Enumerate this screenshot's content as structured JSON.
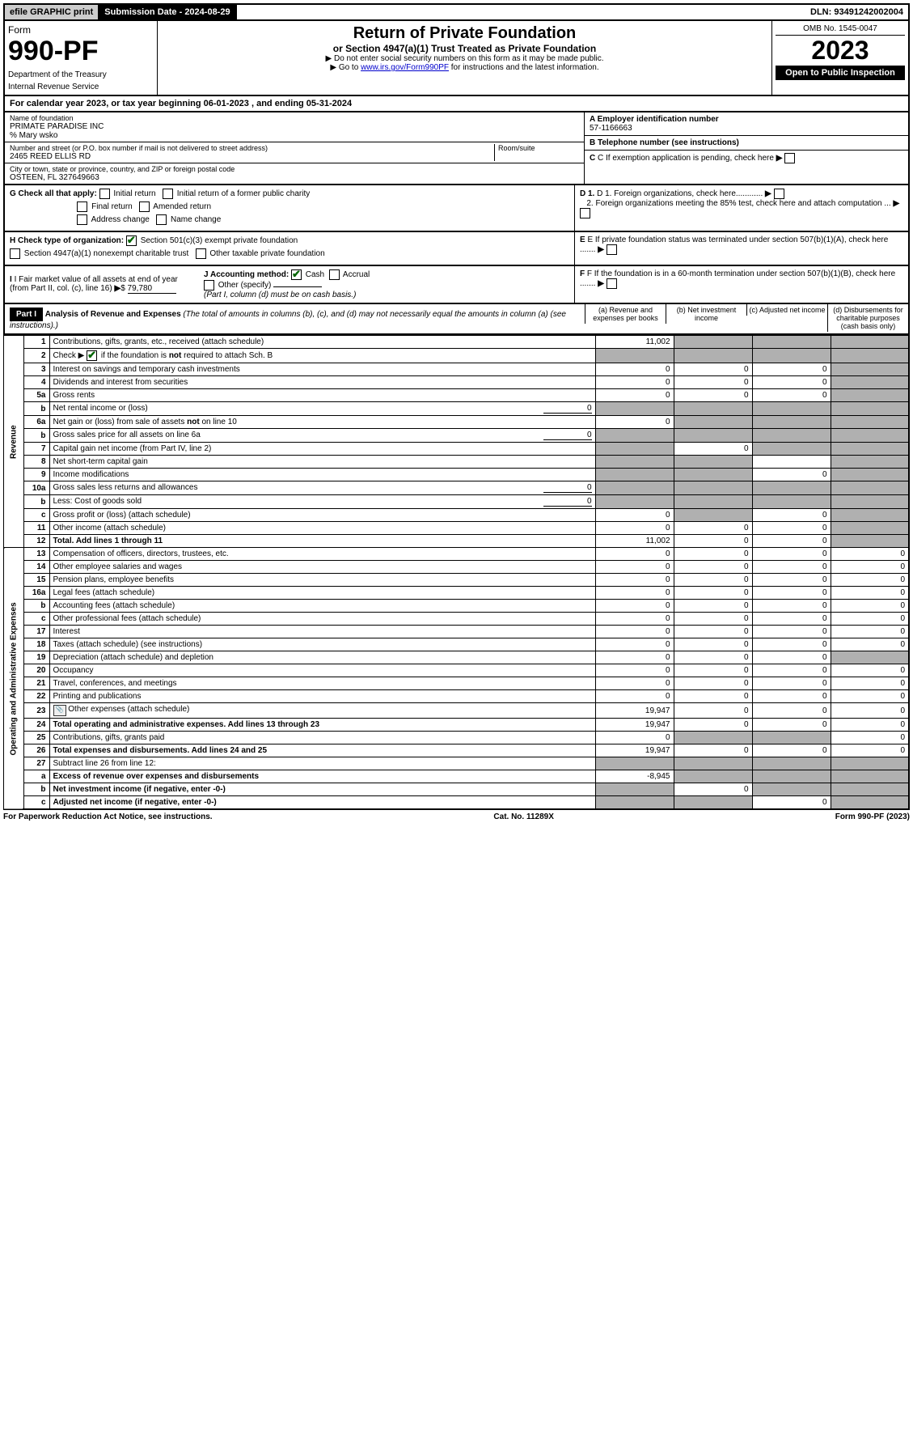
{
  "topbar": {
    "efile": "efile GRAPHIC print",
    "sub_label": "Submission Date - 2024-08-29",
    "dln": "DLN: 93491242002004"
  },
  "header": {
    "form_prefix": "Form",
    "form_num": "990-PF",
    "dept": "Department of the Treasury",
    "irs": "Internal Revenue Service",
    "title": "Return of Private Foundation",
    "subtitle": "or Section 4947(a)(1) Trust Treated as Private Foundation",
    "instr1": "▶ Do not enter social security numbers on this form as it may be made public.",
    "instr2_pre": "▶ Go to ",
    "instr2_link": "www.irs.gov/Form990PF",
    "instr2_post": " for instructions and the latest information.",
    "omb": "OMB No. 1545-0047",
    "year": "2023",
    "open": "Open to Public Inspection"
  },
  "calyear": "For calendar year 2023, or tax year beginning 06-01-2023 , and ending 05-31-2024",
  "id": {
    "name_label": "Name of foundation",
    "name": "PRIMATE PARADISE INC",
    "care_of": "% Mary wsko",
    "addr_label": "Number and street (or P.O. box number if mail is not delivered to street address)",
    "addr": "2465 REED ELLIS RD",
    "room_label": "Room/suite",
    "city_label": "City or town, state or province, country, and ZIP or foreign postal code",
    "city": "OSTEEN, FL 327649663",
    "a_label": "A Employer identification number",
    "a_val": "57-1166663",
    "b_label": "B Telephone number (see instructions)",
    "c_label": "C If exemption application is pending, check here",
    "d1": "D 1. Foreign organizations, check here............",
    "d2": "2. Foreign organizations meeting the 85% test, check here and attach computation ...",
    "e": "E If private foundation status was terminated under section 507(b)(1)(A), check here .......",
    "f": "F If the foundation is in a 60-month termination under section 507(b)(1)(B), check here .......",
    "g": "G Check all that apply:",
    "g_opts": [
      "Initial return",
      "Initial return of a former public charity",
      "Final return",
      "Amended return",
      "Address change",
      "Name change"
    ],
    "h": "H Check type of organization:",
    "h_opts": [
      "Section 501(c)(3) exempt private foundation",
      "Section 4947(a)(1) nonexempt charitable trust",
      "Other taxable private foundation"
    ],
    "i_label": "I Fair market value of all assets at end of year (from Part II, col. (c), line 16)",
    "i_val": "79,780",
    "j_label": "J Accounting method:",
    "j_opts": [
      "Cash",
      "Accrual",
      "Other (specify)"
    ],
    "j_note": "(Part I, column (d) must be on cash basis.)"
  },
  "part1": {
    "label": "Part I",
    "title": "Analysis of Revenue and Expenses",
    "note": "(The total of amounts in columns (b), (c), and (d) may not necessarily equal the amounts in column (a) (see instructions).)",
    "col_a": "(a) Revenue and expenses per books",
    "col_b": "(b) Net investment income",
    "col_c": "(c) Adjusted net income",
    "col_d": "(d) Disbursements for charitable purposes (cash basis only)",
    "side_rev": "Revenue",
    "side_exp": "Operating and Administrative Expenses"
  },
  "rows": [
    {
      "n": "1",
      "desc": "Contributions, gifts, grants, etc., received (attach schedule)",
      "a": "11,002",
      "b": "s",
      "c": "s",
      "d": "s"
    },
    {
      "n": "2",
      "desc": "Check ▶ ☑ if the foundation is not required to attach Sch. B",
      "a": "s",
      "b": "s",
      "c": "s",
      "d": "s"
    },
    {
      "n": "3",
      "desc": "Interest on savings and temporary cash investments",
      "a": "0",
      "b": "0",
      "c": "0",
      "d": "s"
    },
    {
      "n": "4",
      "desc": "Dividends and interest from securities",
      "a": "0",
      "b": "0",
      "c": "0",
      "d": "s"
    },
    {
      "n": "5a",
      "desc": "Gross rents",
      "a": "0",
      "b": "0",
      "c": "0",
      "d": "s"
    },
    {
      "n": "b",
      "desc": "Net rental income or (loss)",
      "inline": "0",
      "a": "s",
      "b": "s",
      "c": "s",
      "d": "s"
    },
    {
      "n": "6a",
      "desc": "Net gain or (loss) from sale of assets not on line 10",
      "a": "0",
      "b": "s",
      "c": "s",
      "d": "s"
    },
    {
      "n": "b",
      "desc": "Gross sales price for all assets on line 6a",
      "inline": "0",
      "a": "s",
      "b": "s",
      "c": "s",
      "d": "s"
    },
    {
      "n": "7",
      "desc": "Capital gain net income (from Part IV, line 2)",
      "a": "s",
      "b": "0",
      "c": "s",
      "d": "s"
    },
    {
      "n": "8",
      "desc": "Net short-term capital gain",
      "a": "s",
      "b": "s",
      "c": "",
      "d": "s"
    },
    {
      "n": "9",
      "desc": "Income modifications",
      "a": "s",
      "b": "s",
      "c": "0",
      "d": "s"
    },
    {
      "n": "10a",
      "desc": "Gross sales less returns and allowances",
      "inline": "0",
      "a": "s",
      "b": "s",
      "c": "s",
      "d": "s"
    },
    {
      "n": "b",
      "desc": "Less: Cost of goods sold",
      "inline": "0",
      "a": "s",
      "b": "s",
      "c": "s",
      "d": "s"
    },
    {
      "n": "c",
      "desc": "Gross profit or (loss) (attach schedule)",
      "a": "0",
      "b": "s",
      "c": "0",
      "d": "s"
    },
    {
      "n": "11",
      "desc": "Other income (attach schedule)",
      "a": "0",
      "b": "0",
      "c": "0",
      "d": "s"
    },
    {
      "n": "12",
      "desc": "Total. Add lines 1 through 11",
      "bold": true,
      "a": "11,002",
      "b": "0",
      "c": "0",
      "d": "s"
    },
    {
      "n": "13",
      "desc": "Compensation of officers, directors, trustees, etc.",
      "a": "0",
      "b": "0",
      "c": "0",
      "d": "0"
    },
    {
      "n": "14",
      "desc": "Other employee salaries and wages",
      "a": "0",
      "b": "0",
      "c": "0",
      "d": "0"
    },
    {
      "n": "15",
      "desc": "Pension plans, employee benefits",
      "a": "0",
      "b": "0",
      "c": "0",
      "d": "0"
    },
    {
      "n": "16a",
      "desc": "Legal fees (attach schedule)",
      "a": "0",
      "b": "0",
      "c": "0",
      "d": "0"
    },
    {
      "n": "b",
      "desc": "Accounting fees (attach schedule)",
      "a": "0",
      "b": "0",
      "c": "0",
      "d": "0"
    },
    {
      "n": "c",
      "desc": "Other professional fees (attach schedule)",
      "a": "0",
      "b": "0",
      "c": "0",
      "d": "0"
    },
    {
      "n": "17",
      "desc": "Interest",
      "a": "0",
      "b": "0",
      "c": "0",
      "d": "0"
    },
    {
      "n": "18",
      "desc": "Taxes (attach schedule) (see instructions)",
      "a": "0",
      "b": "0",
      "c": "0",
      "d": "0"
    },
    {
      "n": "19",
      "desc": "Depreciation (attach schedule) and depletion",
      "a": "0",
      "b": "0",
      "c": "0",
      "d": "s"
    },
    {
      "n": "20",
      "desc": "Occupancy",
      "a": "0",
      "b": "0",
      "c": "0",
      "d": "0"
    },
    {
      "n": "21",
      "desc": "Travel, conferences, and meetings",
      "a": "0",
      "b": "0",
      "c": "0",
      "d": "0"
    },
    {
      "n": "22",
      "desc": "Printing and publications",
      "a": "0",
      "b": "0",
      "c": "0",
      "d": "0"
    },
    {
      "n": "23",
      "desc": "Other expenses (attach schedule)",
      "icon": true,
      "a": "19,947",
      "b": "0",
      "c": "0",
      "d": "0"
    },
    {
      "n": "24",
      "desc": "Total operating and administrative expenses. Add lines 13 through 23",
      "bold": true,
      "a": "19,947",
      "b": "0",
      "c": "0",
      "d": "0"
    },
    {
      "n": "25",
      "desc": "Contributions, gifts, grants paid",
      "a": "0",
      "b": "s",
      "c": "s",
      "d": "0"
    },
    {
      "n": "26",
      "desc": "Total expenses and disbursements. Add lines 24 and 25",
      "bold": true,
      "a": "19,947",
      "b": "0",
      "c": "0",
      "d": "0"
    },
    {
      "n": "27",
      "desc": "Subtract line 26 from line 12:",
      "a": "s",
      "b": "s",
      "c": "s",
      "d": "s"
    },
    {
      "n": "a",
      "desc": "Excess of revenue over expenses and disbursements",
      "bold": true,
      "a": "-8,945",
      "b": "s",
      "c": "s",
      "d": "s"
    },
    {
      "n": "b",
      "desc": "Net investment income (if negative, enter -0-)",
      "bold": true,
      "a": "s",
      "b": "0",
      "c": "s",
      "d": "s"
    },
    {
      "n": "c",
      "desc": "Adjusted net income (if negative, enter -0-)",
      "bold": true,
      "a": "s",
      "b": "s",
      "c": "0",
      "d": "s"
    }
  ],
  "footer": {
    "left": "For Paperwork Reduction Act Notice, see instructions.",
    "center": "Cat. No. 11289X",
    "right": "Form 990-PF (2023)"
  },
  "colors": {
    "shaded": "#b0b0b0",
    "link": "#0000cc",
    "check": "#006400"
  }
}
